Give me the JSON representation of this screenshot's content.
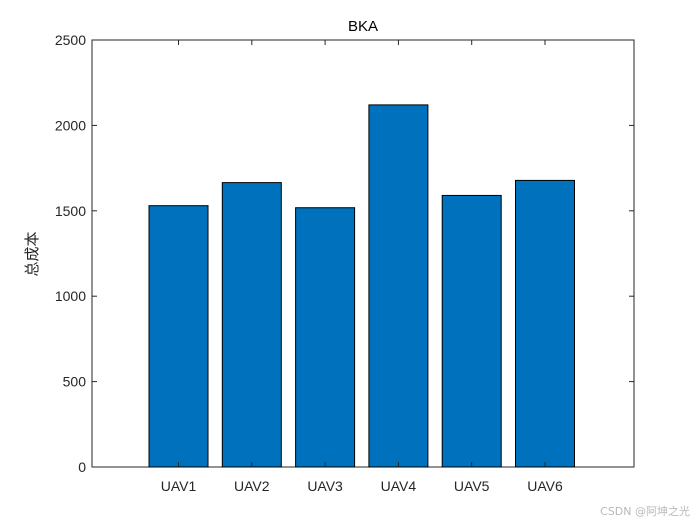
{
  "chart_data": {
    "type": "bar",
    "title": "BKA",
    "xlabel": "",
    "ylabel": "总成本",
    "categories": [
      "UAV1",
      "UAV2",
      "UAV3",
      "UAV4",
      "UAV5",
      "UAV6"
    ],
    "values": [
      1530,
      1665,
      1518,
      2120,
      1590,
      1678
    ],
    "ylim": [
      0,
      2500
    ],
    "yticks": [
      0,
      500,
      1000,
      1500,
      2000,
      2500
    ],
    "grid": false,
    "legend": "none",
    "colors": {
      "bar_fill": "#0072BD",
      "bar_edge": "#000000",
      "axis": "#262626"
    }
  },
  "watermark": "CSDN @阿坤之光"
}
